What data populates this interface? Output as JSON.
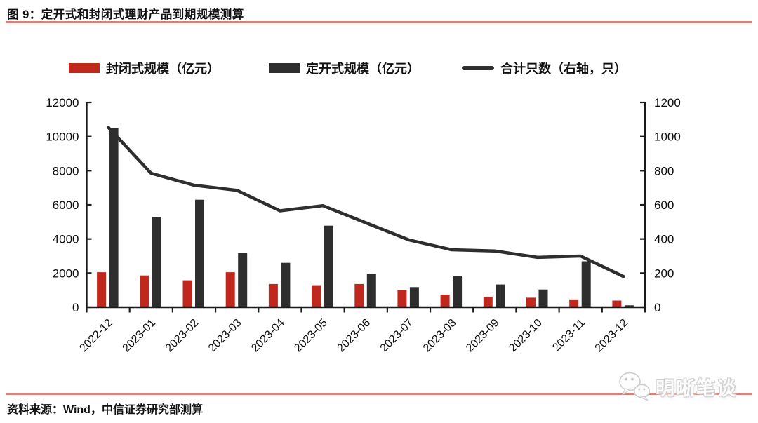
{
  "header": {
    "title": "图 9：定开式和封闭式理财产品到期规模测算"
  },
  "footer": {
    "source": "资料来源：Wind，中信证券研究部测算",
    "watermark": "明晰笔谈"
  },
  "colors": {
    "closed_bar": "#c0281e",
    "open_bar": "#2e2e2e",
    "line": "#2e2e2e",
    "axis": "#1a1a1a",
    "accent_rule": "#c4544c"
  },
  "chart_data": {
    "type": "bar+line",
    "title": "定开式和封闭式理财产品到期规模测算",
    "categories": [
      "2022-12",
      "2023-01",
      "2023-02",
      "2023-03",
      "2023-04",
      "2023-05",
      "2023-06",
      "2023-07",
      "2023-08",
      "2023-09",
      "2023-10",
      "2023-11",
      "2023-12"
    ],
    "series": [
      {
        "name": "封闭式规模（亿元）",
        "type": "bar",
        "axis": "left",
        "color": "#c0281e",
        "values": [
          2050,
          1860,
          1580,
          2050,
          1360,
          1290,
          1360,
          1010,
          740,
          620,
          560,
          460,
          390
        ]
      },
      {
        "name": "定开式规模（亿元）",
        "type": "bar",
        "axis": "left",
        "color": "#2e2e2e",
        "values": [
          10520,
          5290,
          6300,
          3180,
          2600,
          4780,
          1940,
          1180,
          1850,
          1330,
          1040,
          2690,
          110
        ]
      },
      {
        "name": "合计只数（右轴，只）",
        "type": "line",
        "axis": "right",
        "color": "#2e2e2e",
        "values": [
          1055,
          785,
          715,
          685,
          565,
          595,
          495,
          395,
          337,
          330,
          292,
          300,
          180
        ]
      }
    ],
    "left_axis": {
      "label": "",
      "min": 0,
      "max": 12000,
      "step": 2000,
      "ticks": [
        "0",
        "2000",
        "4000",
        "6000",
        "8000",
        "10000",
        "12000"
      ]
    },
    "right_axis": {
      "label": "",
      "min": 0,
      "max": 1200,
      "step": 200,
      "ticks": [
        "0",
        "200",
        "400",
        "600",
        "800",
        "1000",
        "1200"
      ]
    },
    "grid": false,
    "legend_position": "top"
  }
}
